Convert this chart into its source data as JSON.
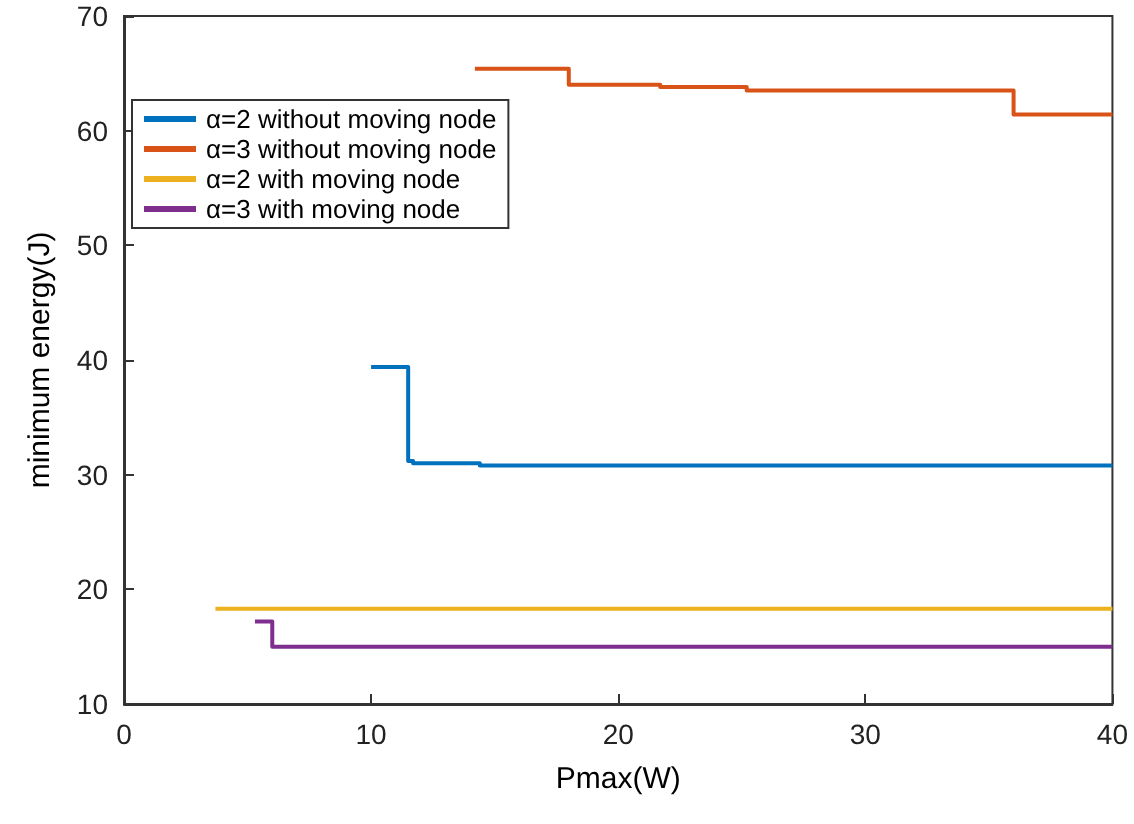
{
  "chart_data": {
    "type": "step",
    "xlabel": "Pmax(W)",
    "ylabel": "minimum energy(J)",
    "xlim": [
      0,
      40
    ],
    "xticks": [
      0,
      10,
      20,
      30,
      40
    ],
    "ylim": [
      10,
      70
    ],
    "yticks": [
      10,
      20,
      30,
      40,
      50,
      60,
      70
    ],
    "grid": false,
    "legend": "top left",
    "marker": "none",
    "line_style": "solid",
    "series": [
      {
        "name": "α=2 without moving node",
        "color": "#0072bd",
        "x": [
          10,
          11.5,
          11.7,
          14.4,
          40
        ],
        "values": [
          39.4,
          31.2,
          31.0,
          30.8,
          30.8
        ]
      },
      {
        "name": "α=3 without moving node",
        "color": "#d95319",
        "x": [
          14.2,
          18.0,
          21.7,
          25.2,
          36.0,
          40
        ],
        "values": [
          65.4,
          64.0,
          63.8,
          63.5,
          61.4,
          61.4
        ]
      },
      {
        "name": "α=2 with moving node",
        "color": "#edb120",
        "x": [
          3.7,
          40
        ],
        "values": [
          18.3,
          18.3
        ]
      },
      {
        "name": "α=3 with moving node",
        "color": "#7e2f8e",
        "x": [
          5.3,
          6.0,
          40
        ],
        "values": [
          17.2,
          15.0,
          15.0
        ]
      }
    ]
  }
}
